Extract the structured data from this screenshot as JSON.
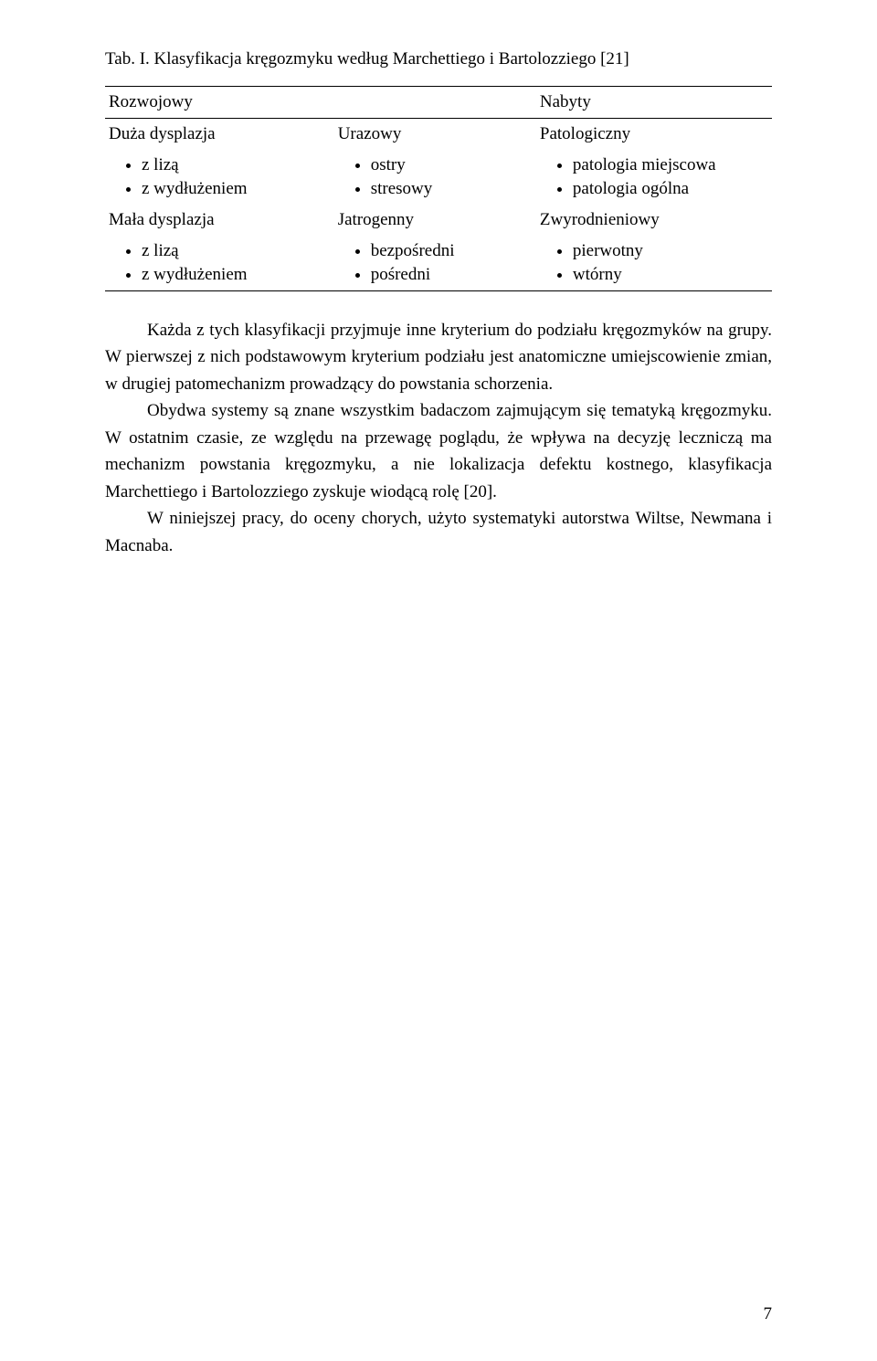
{
  "caption": "Tab. I. Klasyfikacja kręgozmyku według Marchettiego i Bartolozziego [21]",
  "table": {
    "heading": {
      "left": "Rozwojowy",
      "center": "",
      "right": "Nabyty"
    },
    "row1_heads": {
      "left": "Duża dysplazja",
      "center": "Urazowy",
      "right": "Patologiczny"
    },
    "row1_items": {
      "left": [
        "z lizą",
        "z wydłużeniem"
      ],
      "center": [
        "ostry",
        "stresowy"
      ],
      "right": [
        "patologia miejscowa",
        "patologia ogólna"
      ]
    },
    "row2_heads": {
      "left": "Mała dysplazja",
      "center": "Jatrogenny",
      "right": "Zwyrodnieniowy"
    },
    "row2_items": {
      "left": [
        "z lizą",
        "z wydłużeniem"
      ],
      "center": [
        "bezpośredni",
        "pośredni"
      ],
      "right": [
        "pierwotny",
        "wtórny"
      ]
    }
  },
  "paragraphs": {
    "p1": "Każda z tych klasyfikacji przyjmuje inne kryterium do podziału kręgozmyków na grupy. W pierwszej z nich podstawowym kryterium podziału jest anatomiczne umiejscowienie zmian, w drugiej patomechanizm prowadzący do powstania schorzenia.",
    "p2": "Obydwa systemy są znane wszystkim badaczom zajmującym się tematyką kręgozmyku. W ostatnim czasie, ze względu na przewagę poglądu, że wpływa na decyzję leczniczą ma mechanizm powstania kręgozmyku, a nie lokalizacja defektu kostnego, klasyfikacja Marchettiego i Bartolozziego zyskuje wiodącą rolę [20].",
    "p3": "W niniejszej pracy, do oceny chorych, użyto systematyki autorstwa Wiltse, Newmana i Macnaba."
  },
  "pageNumber": "7"
}
